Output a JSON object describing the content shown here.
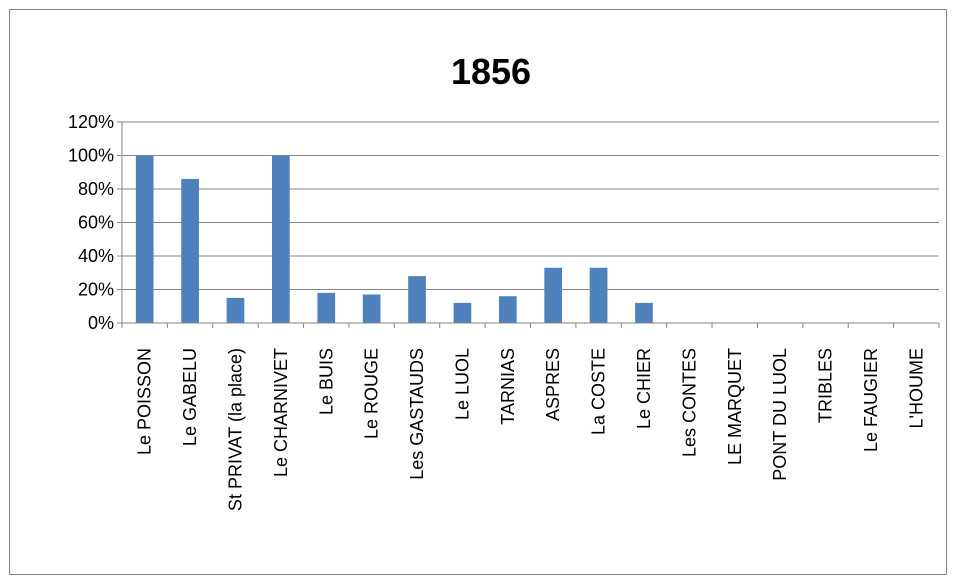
{
  "chart_data": {
    "type": "bar",
    "title": "1856",
    "xlabel": "",
    "ylabel": "",
    "categories": [
      "Le POISSON",
      "Le GABELU",
      "St PRIVAT (la place)",
      "Le CHARNIVET",
      "Le BUIS",
      "Le ROUGE",
      "Les GASTAUDS",
      "Le LUOL",
      "TARNIAS",
      "ASPRES",
      "La COSTE",
      "Le CHIER",
      "Les CONTES",
      "LE MARQUET",
      "PONT DU LUOL",
      "TRIBLES",
      "Le FAUGIER",
      "L'HOUME"
    ],
    "values": [
      1.0,
      0.86,
      0.15,
      1.0,
      0.18,
      0.17,
      0.28,
      0.12,
      0.16,
      0.33,
      0.33,
      0.12,
      0,
      0,
      0,
      0,
      0,
      0
    ],
    "ylim": [
      0,
      1.2
    ],
    "yticks": [
      0,
      0.2,
      0.4,
      0.6,
      0.8,
      1.0,
      1.2
    ],
    "ytick_labels": [
      "0%",
      "20%",
      "40%",
      "60%",
      "80%",
      "100%",
      "120%"
    ],
    "grid": true,
    "legend": "none",
    "bar_color": "#4f81bd",
    "grid_color": "#868686"
  }
}
